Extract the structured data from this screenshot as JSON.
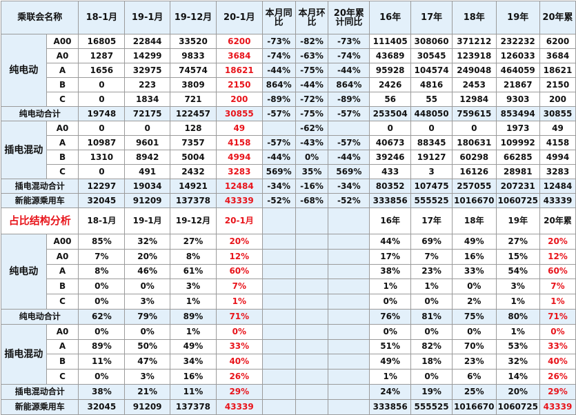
{
  "headers_top": [
    "乘联会名称",
    "18-1月",
    "19-1月",
    "19-12月",
    "20-1月",
    "本月同比",
    "本月环比",
    "20年累计同比",
    "16年",
    "17年",
    "18年",
    "19年",
    "20年累"
  ],
  "headers_bottom": [
    "18-1月",
    "19-1月",
    "19-12月",
    "20-1月",
    "16年",
    "17年",
    "18年",
    "19年",
    "20年累"
  ],
  "section2_title": "占比结构分析",
  "cat_bev": "纯电动",
  "cat_phev": "插电混动",
  "top": {
    "bev": [
      {
        "seg": "A00",
        "v": [
          "16805",
          "22844",
          "33520",
          "6200",
          "-73%",
          "-82%",
          "-73%",
          "111405",
          "308060",
          "371212",
          "232232",
          "6200"
        ]
      },
      {
        "seg": "A0",
        "v": [
          "1287",
          "14299",
          "9833",
          "3684",
          "-74%",
          "-63%",
          "-74%",
          "43689",
          "30545",
          "123918",
          "126033",
          "3684"
        ]
      },
      {
        "seg": "A",
        "v": [
          "1656",
          "32975",
          "74574",
          "18621",
          "-44%",
          "-75%",
          "-44%",
          "95928",
          "104574",
          "249048",
          "464059",
          "18621"
        ]
      },
      {
        "seg": "B",
        "v": [
          "0",
          "223",
          "3809",
          "2150",
          "864%",
          "-44%",
          "864%",
          "2426",
          "4816",
          "2453",
          "21867",
          "2150"
        ]
      },
      {
        "seg": "C",
        "v": [
          "0",
          "1834",
          "721",
          "200",
          "-89%",
          "-72%",
          "-89%",
          "56",
          "55",
          "12984",
          "9303",
          "200"
        ]
      }
    ],
    "bev_total": {
      "label": "纯电动合计",
      "v": [
        "19748",
        "72175",
        "122457",
        "30855",
        "-57%",
        "-75%",
        "-57%",
        "253504",
        "448050",
        "759615",
        "853494",
        "30855"
      ]
    },
    "phev": [
      {
        "seg": "A0",
        "v": [
          "0",
          "0",
          "128",
          "49",
          "",
          "-62%",
          "",
          "0",
          "0",
          "0",
          "1973",
          "49"
        ]
      },
      {
        "seg": "A",
        "v": [
          "10987",
          "9601",
          "7357",
          "4158",
          "-57%",
          "-43%",
          "-57%",
          "40673",
          "88345",
          "180631",
          "109992",
          "4158"
        ]
      },
      {
        "seg": "B",
        "v": [
          "1310",
          "8942",
          "5004",
          "4994",
          "-44%",
          "0%",
          "-44%",
          "39246",
          "19127",
          "60298",
          "66285",
          "4994"
        ]
      },
      {
        "seg": "C",
        "v": [
          "0",
          "491",
          "2432",
          "3283",
          "569%",
          "35%",
          "569%",
          "433",
          "3",
          "16126",
          "28981",
          "3283"
        ]
      }
    ],
    "phev_total": {
      "label": "插电混动合计",
      "v": [
        "12297",
        "19034",
        "14921",
        "12484",
        "-34%",
        "-16%",
        "-34%",
        "80352",
        "107475",
        "257055",
        "207231",
        "12484"
      ]
    },
    "nev_total": {
      "label": "新能源乘用车",
      "v": [
        "32045",
        "91209",
        "137378",
        "43339",
        "-52%",
        "-68%",
        "-52%",
        "333856",
        "555525",
        "1016670",
        "1060725",
        "43339"
      ]
    }
  },
  "bottom": {
    "bev": [
      {
        "seg": "A00",
        "v": [
          "85%",
          "32%",
          "27%",
          "20%",
          "44%",
          "69%",
          "49%",
          "27%",
          "20%"
        ]
      },
      {
        "seg": "A0",
        "v": [
          "7%",
          "20%",
          "8%",
          "12%",
          "17%",
          "7%",
          "16%",
          "15%",
          "12%"
        ]
      },
      {
        "seg": "A",
        "v": [
          "8%",
          "46%",
          "61%",
          "60%",
          "38%",
          "23%",
          "33%",
          "54%",
          "60%"
        ]
      },
      {
        "seg": "B",
        "v": [
          "0%",
          "0%",
          "3%",
          "7%",
          "1%",
          "1%",
          "0%",
          "3%",
          "7%"
        ]
      },
      {
        "seg": "C",
        "v": [
          "0%",
          "3%",
          "1%",
          "1%",
          "0%",
          "0%",
          "2%",
          "1%",
          "1%"
        ]
      }
    ],
    "bev_total": {
      "label": "纯电动合计",
      "v": [
        "62%",
        "79%",
        "89%",
        "71%",
        "76%",
        "81%",
        "75%",
        "80%",
        "71%"
      ]
    },
    "phev": [
      {
        "seg": "A0",
        "v": [
          "0%",
          "0%",
          "1%",
          "0%",
          "0%",
          "0%",
          "0%",
          "1%",
          "0%"
        ]
      },
      {
        "seg": "A",
        "v": [
          "89%",
          "50%",
          "49%",
          "33%",
          "51%",
          "82%",
          "70%",
          "53%",
          "33%"
        ]
      },
      {
        "seg": "B",
        "v": [
          "11%",
          "47%",
          "34%",
          "40%",
          "49%",
          "18%",
          "23%",
          "32%",
          "40%"
        ]
      },
      {
        "seg": "C",
        "v": [
          "0%",
          "3%",
          "16%",
          "26%",
          "1%",
          "0%",
          "6%",
          "14%",
          "26%"
        ]
      }
    ],
    "phev_total": {
      "label": "插电混动合计",
      "v": [
        "38%",
        "21%",
        "11%",
        "29%",
        "24%",
        "19%",
        "25%",
        "20%",
        "29%"
      ]
    },
    "nev_total": {
      "label": "新能源乘用车",
      "v": [
        "32045",
        "91209",
        "137378",
        "43339",
        "333856",
        "555525",
        "1016670",
        "1060725",
        "43339"
      ]
    }
  },
  "colors": {
    "accent_red": "#e8141b",
    "header_blue": "#e3f0fa",
    "grid": "#9a9a9a"
  }
}
